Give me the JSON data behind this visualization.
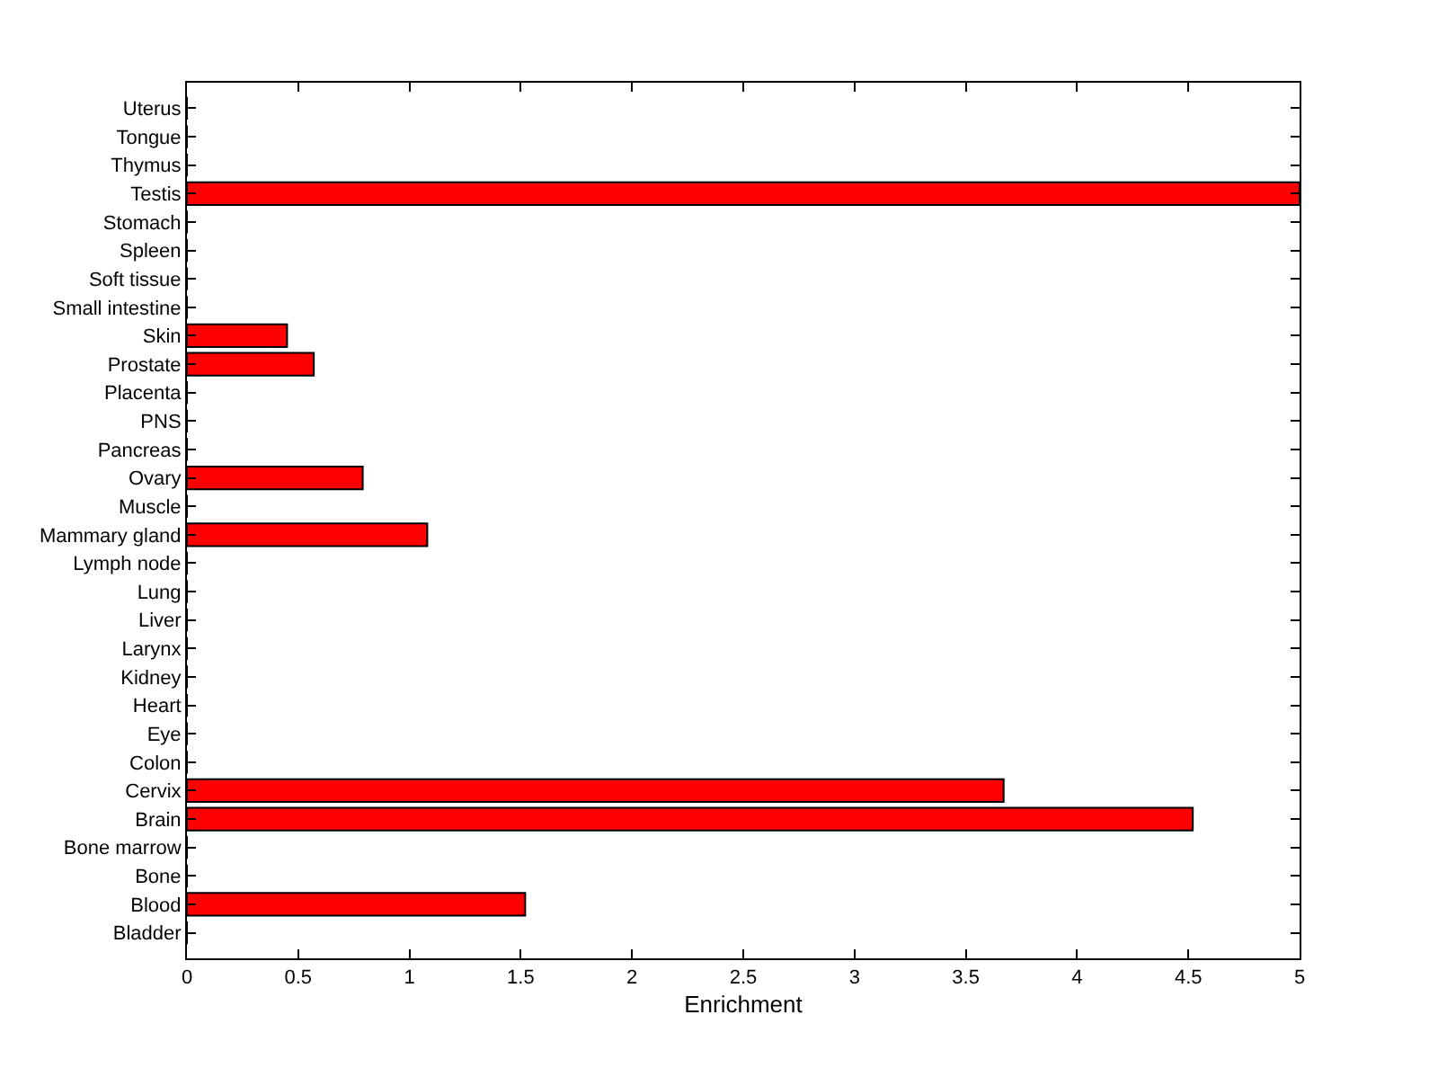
{
  "chart_data": {
    "type": "bar",
    "orientation": "horizontal",
    "xlabel": "Enrichment",
    "categories": [
      "Uterus",
      "Tongue",
      "Thymus",
      "Testis",
      "Stomach",
      "Spleen",
      "Soft tissue",
      "Small intestine",
      "Skin",
      "Prostate",
      "Placenta",
      "PNS",
      "Pancreas",
      "Ovary",
      "Muscle",
      "Mammary gland",
      "Lymph node",
      "Lung",
      "Liver",
      "Larynx",
      "Kidney",
      "Heart",
      "Eye",
      "Colon",
      "Cervix",
      "Brain",
      "Bone marrow",
      "Bone",
      "Blood",
      "Bladder"
    ],
    "values": [
      0,
      0,
      0,
      5,
      0,
      0,
      0,
      0,
      0.45,
      0.57,
      0,
      0,
      0,
      0.79,
      0,
      1.08,
      0,
      0,
      0,
      0,
      0,
      0,
      0,
      0,
      3.67,
      4.52,
      0,
      0,
      1.52,
      0
    ],
    "color": "#ff0000",
    "xlim": [
      0,
      5
    ],
    "xticks": [
      0,
      0.5,
      1,
      1.5,
      2,
      2.5,
      3,
      3.5,
      4,
      4.5,
      5
    ],
    "grid": false,
    "legend": false
  }
}
